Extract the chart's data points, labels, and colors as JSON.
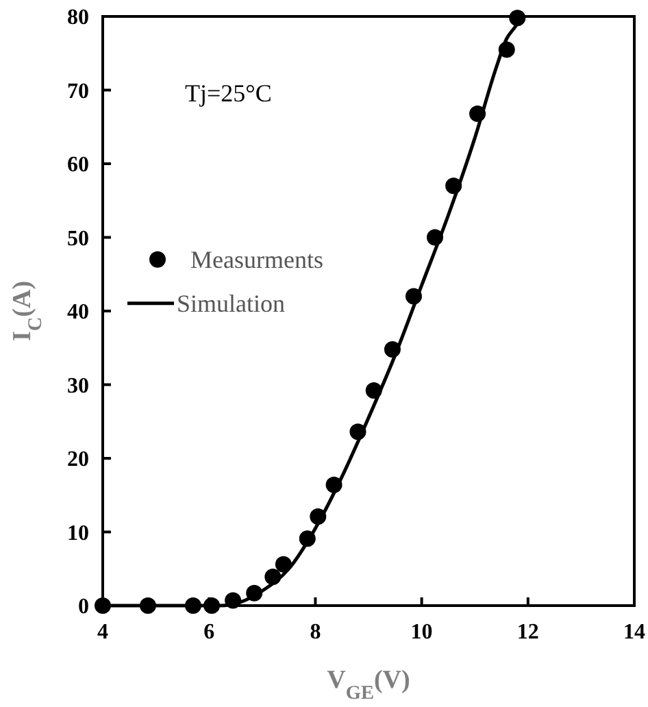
{
  "chart_data": {
    "type": "scatter",
    "xlabel": "V$_{GE}$(V)",
    "ylabel": "I$_{C}$(A)",
    "xlim": [
      4,
      14
    ],
    "ylim": [
      0,
      80
    ],
    "xticks": [
      4,
      6,
      8,
      10,
      12,
      14
    ],
    "yticks": [
      0,
      10,
      20,
      30,
      40,
      50,
      60,
      70,
      80
    ],
    "grid": false,
    "legend": "left",
    "annotations": [
      "Tj=25°C"
    ],
    "series": [
      {
        "name": "Measurments",
        "marker": "circle",
        "color": "#000000",
        "x": [
          4,
          4.85,
          5.7,
          6.05,
          6.45,
          6.85,
          7.2,
          7.4,
          7.85,
          8.05,
          8.35,
          8.8,
          9.1,
          9.45,
          9.85,
          10.25,
          10.6,
          11.05,
          11.6,
          11.8
        ],
        "values": [
          0,
          0,
          0,
          0,
          0.7,
          1.7,
          3.9,
          5.6,
          9.1,
          12.1,
          16.4,
          23.6,
          29.2,
          34.8,
          42,
          50,
          57,
          66.8,
          75.5,
          79.8
        ]
      },
      {
        "name": "Simulation",
        "type": "line",
        "marker": "none",
        "line_style": "solid",
        "color": "#000000",
        "x": [
          4,
          6.2,
          6.6,
          7,
          7.5,
          8,
          8.5,
          9,
          9.5,
          10,
          10.5,
          11,
          11.4,
          11.6,
          11.75,
          11.9
        ],
        "values": [
          0,
          0,
          0.5,
          2,
          5,
          10.5,
          17.5,
          25.5,
          34,
          43.5,
          53,
          63.5,
          73,
          77,
          78.5,
          80
        ]
      }
    ]
  }
}
